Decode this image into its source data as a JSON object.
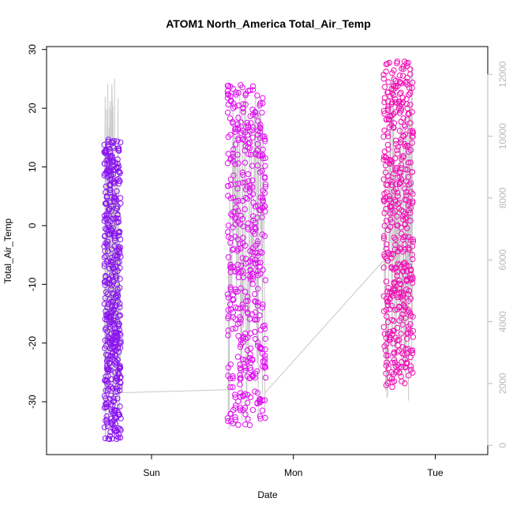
{
  "chart_data": {
    "type": "scatter",
    "title": "ATOM1 North_America Total_Air_Temp",
    "xlabel": "Date",
    "ylabel": "Total_Air_Temp",
    "x_ticks": [
      "Sun",
      "Mon",
      "Tue"
    ],
    "y_ticks": [
      "30",
      "20",
      "10",
      "0",
      "-10",
      "-20",
      "-30"
    ],
    "y_right_ticks": [
      "12000",
      "10000",
      "8000",
      "6000",
      "4000",
      "2000",
      "0"
    ],
    "ylim": [
      -39,
      30.5
    ],
    "y2lim": [
      -300,
      12900
    ],
    "xlim_days": [
      -0.74,
      2.37
    ],
    "colors": {
      "segment_1": "#8a14f0",
      "segment_2": "#e010f0",
      "segment_3": "#f010b4",
      "altitude_line": "#c8c8c8"
    },
    "segments": [
      {
        "x_range_days": [
          -0.33,
          -0.22
        ],
        "temp_min": -36.5,
        "temp_max": 15,
        "altitude_min": 0,
        "altitude_max": 11900
      },
      {
        "x_range_days": [
          0.54,
          0.8
        ],
        "temp_min": -34,
        "temp_max": 24,
        "altitude_min": 500,
        "altitude_max": 11500
      },
      {
        "x_range_days": [
          1.64,
          1.84
        ],
        "temp_min": -27.5,
        "temp_max": 28,
        "altitude_min": 1300,
        "altitude_max": 12300
      }
    ],
    "altitude_connections": [
      {
        "from": [
          -0.22,
          1700
        ],
        "to": [
          0.54,
          1800
        ]
      },
      {
        "from": [
          0.8,
          1700
        ],
        "to": [
          1.64,
          6000
        ]
      }
    ]
  }
}
